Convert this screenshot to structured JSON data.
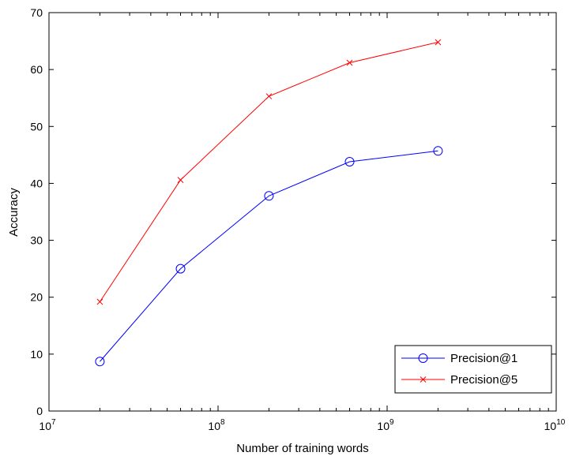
{
  "chart_data": {
    "type": "line",
    "title": "",
    "xlabel": "Number of training words",
    "ylabel": "Accuracy",
    "xscale": "log",
    "xlim": [
      10000000,
      10000000000
    ],
    "ylim": [
      0,
      70
    ],
    "x_tick_labels": [
      {
        "value": 10000000,
        "base": "10",
        "exp": "7"
      },
      {
        "value": 100000000,
        "base": "10",
        "exp": "8"
      },
      {
        "value": 1000000000,
        "base": "10",
        "exp": "9"
      },
      {
        "value": 10000000000,
        "base": "10",
        "exp": "10"
      }
    ],
    "y_ticks": [
      0,
      10,
      20,
      30,
      40,
      50,
      60,
      70
    ],
    "grid": false,
    "legend_position": "bottom-right",
    "x": [
      20000000,
      60000000,
      200000000,
      600000000,
      2000000000
    ],
    "series": [
      {
        "name": "Precision@1",
        "color": "#0000ff",
        "marker": "circle",
        "values": [
          8.7,
          25.0,
          37.8,
          43.8,
          45.7
        ]
      },
      {
        "name": "Precision@5",
        "color": "#ff0000",
        "marker": "x",
        "values": [
          19.2,
          40.6,
          55.3,
          61.2,
          64.8
        ]
      }
    ]
  }
}
